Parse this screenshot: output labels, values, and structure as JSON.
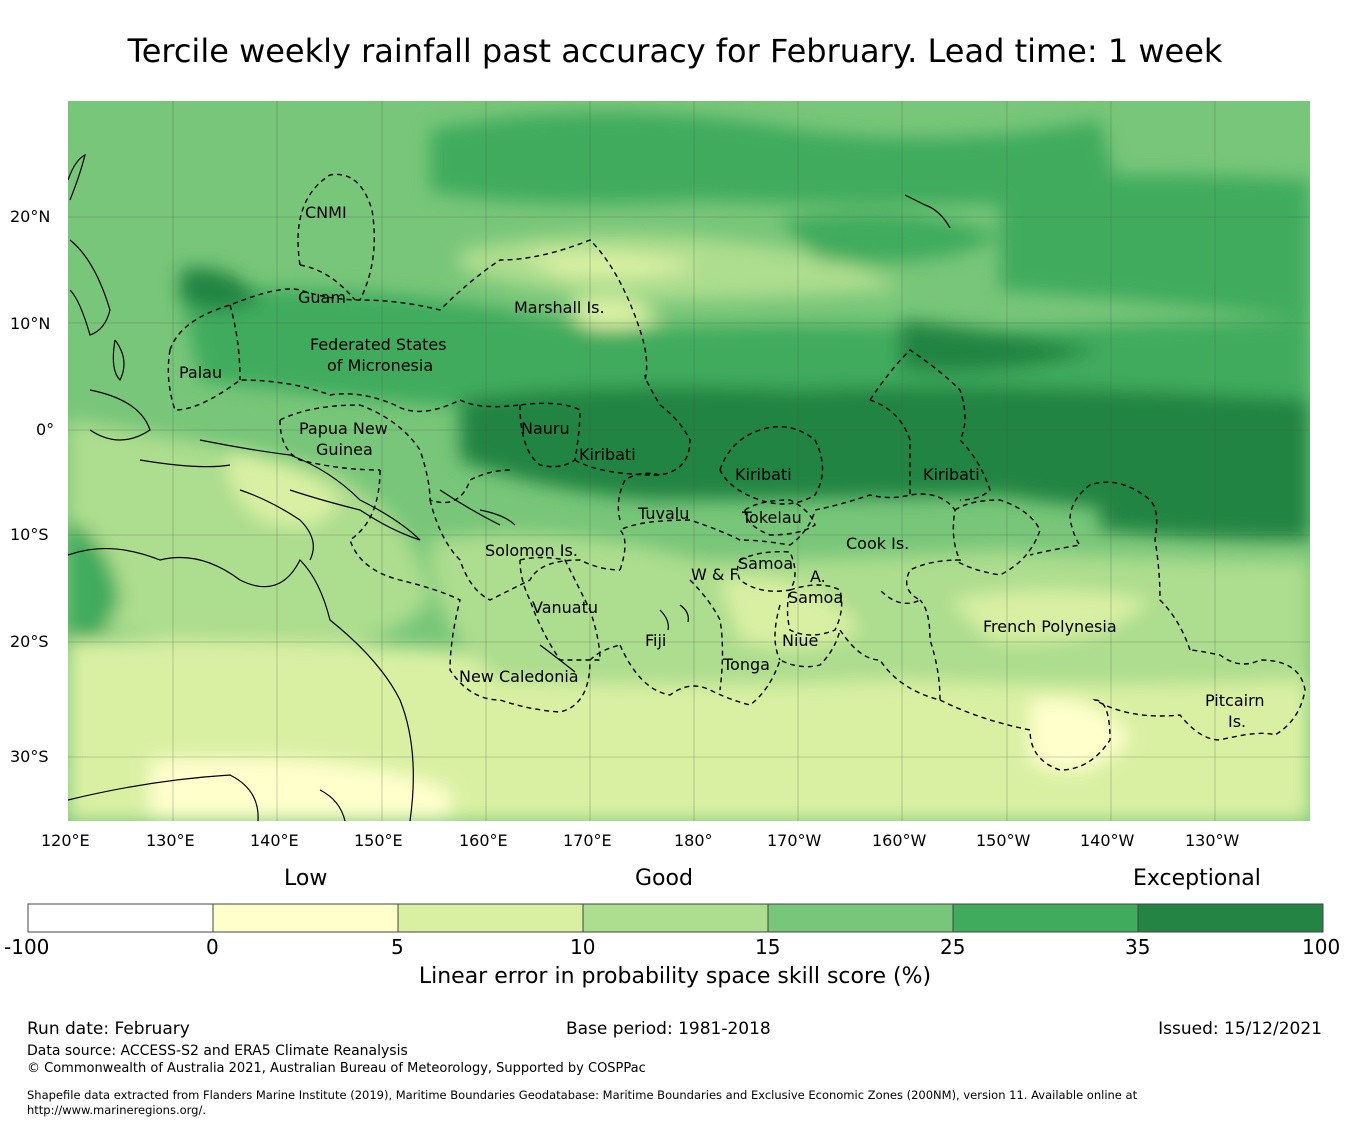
{
  "title": "Tercile weekly rainfall past accuracy for February. Lead time: 1 week",
  "map": {
    "lat_ticks": [
      "20°N",
      "10°N",
      "0°",
      "10°S",
      "20°S",
      "30°S"
    ],
    "lon_ticks": [
      "120°E",
      "130°E",
      "140°E",
      "150°E",
      "160°E",
      "170°E",
      "180°",
      "170°W",
      "160°W",
      "150°W",
      "140°W",
      "130°W"
    ],
    "region_labels": [
      "CNMI",
      "Guam",
      "Marshall Is.",
      "Federated States",
      "of Micronesia",
      "Palau",
      "Papua New",
      "Guinea",
      "Nauru",
      "Kiribati",
      "Kiribati",
      "Kiribati",
      "Tuvalu",
      "Tokelau",
      "Solomon Is.",
      "W & F",
      "Samoa",
      "A.",
      "Samoa",
      "Cook Is.",
      "Vanuatu",
      "Fiji",
      "Niue",
      "Tonga",
      "New Caledonia",
      "French Polynesia",
      "Pitcairn",
      "Is."
    ]
  },
  "colorbar": {
    "category_labels": [
      "Low",
      "Good",
      "Exceptional"
    ],
    "ticks": [
      "-100",
      "0",
      "5",
      "10",
      "15",
      "25",
      "35",
      "100"
    ],
    "colors": [
      "#ffffff",
      "#ffffcc",
      "#d9f0a3",
      "#addd8e",
      "#78c679",
      "#41ab5d",
      "#238443"
    ],
    "label": "Linear error in probability space skill score (%)"
  },
  "footer": {
    "run_date": "Run date: February",
    "base_period": "Base period: 1981-2018",
    "issued": "Issued: 15/12/2021",
    "data_source": "Data source: ACCESS-S2 and ERA5 Climate Reanalysis",
    "copyright": "© Commonwealth of Australia 2021, Australian Bureau of Meteorology, Supported by COSPPac",
    "shapefile_line1": "Shapefile data extracted from Flanders Marine Institute (2019), Maritime Boundaries Geodatabase: Maritime Boundaries and Exclusive Economic Zones (200NM), version 11. Available online at",
    "shapefile_line2": "http://www.marineregions.org/."
  }
}
